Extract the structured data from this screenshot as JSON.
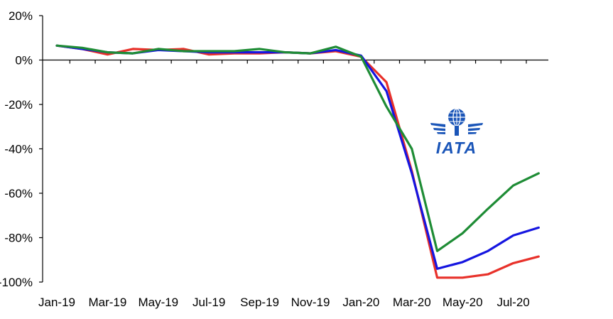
{
  "chart_data": {
    "type": "line",
    "x": [
      "Jan-19",
      "Feb-19",
      "Mar-19",
      "Apr-19",
      "May-19",
      "Jun-19",
      "Jul-19",
      "Aug-19",
      "Sep-19",
      "Oct-19",
      "Nov-19",
      "Dec-19",
      "Jan-20",
      "Feb-20",
      "Mar-20",
      "Apr-20",
      "May-20",
      "Jun-20",
      "Jul-20",
      "Aug-20"
    ],
    "x_tick_labels": [
      "Jan-19",
      "Mar-19",
      "May-19",
      "Jul-19",
      "Sep-19",
      "Nov-19",
      "Jan-20",
      "Mar-20",
      "May-20",
      "Jul-20"
    ],
    "y_ticks": [
      20,
      0,
      -20,
      -40,
      -60,
      -80,
      -100
    ],
    "y_tick_labels": [
      "20%",
      "0%",
      "-20%",
      "-40%",
      "-60%",
      "-80%",
      "-100%"
    ],
    "ylim": [
      -100,
      20
    ],
    "grid": false,
    "series": [
      {
        "color": "#e8312a",
        "values": [
          6.5,
          5,
          2.5,
          5,
          4.5,
          5,
          2.5,
          3,
          3,
          3.5,
          3,
          4,
          1.5,
          -10,
          -50,
          -98,
          -98,
          -96.5,
          -91.5,
          -88.5
        ]
      },
      {
        "color": "#1515e0",
        "values": [
          6.5,
          5,
          3.5,
          3,
          4.5,
          4,
          3.5,
          3.5,
          3.5,
          3.5,
          3,
          4.5,
          2,
          -14,
          -51,
          -94,
          -91,
          -86,
          -79,
          -75.5
        ]
      },
      {
        "color": "#1e8c35",
        "values": [
          6.5,
          5.5,
          3.5,
          3,
          5,
          4,
          4,
          4,
          5,
          3.5,
          3,
          6,
          1.5,
          -21,
          -40,
          -86,
          -78,
          -67,
          -56.5,
          -51
        ]
      }
    ]
  },
  "logo": {
    "text": "IATA",
    "color": "#1a55b8"
  }
}
